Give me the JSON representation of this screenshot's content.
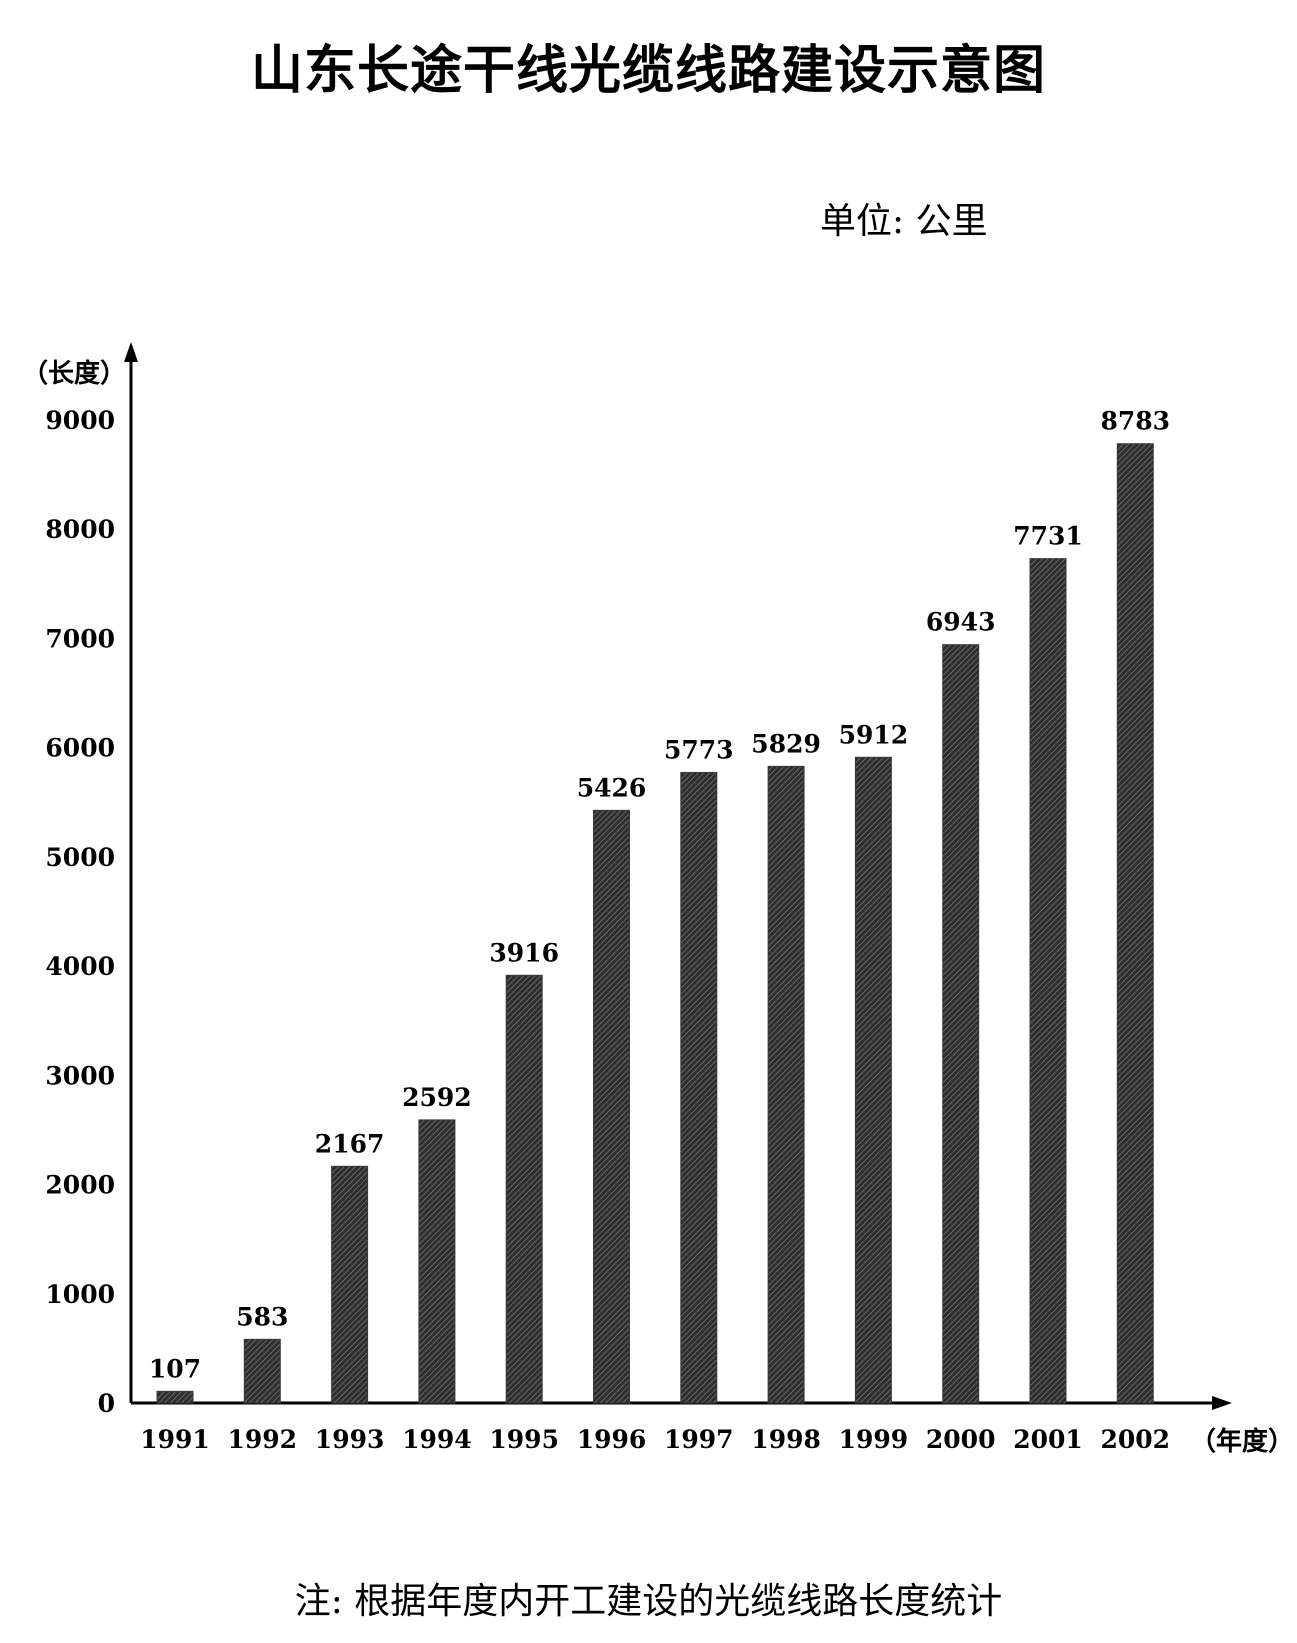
{
  "chart_data": {
    "type": "bar",
    "title": "山东长途干线光缆线路建设示意图",
    "unit": "单位: 公里",
    "ylabel": "（长度）",
    "xlabel": "（年度）",
    "note": "注: 根据年度内开工建设的光缆线路长度统计",
    "ylim": [
      0,
      9000
    ],
    "yticks": [
      0,
      1000,
      2000,
      3000,
      4000,
      5000,
      6000,
      7000,
      8000,
      9000
    ],
    "categories": [
      "1991",
      "1992",
      "1993",
      "1994",
      "1995",
      "1996",
      "1997",
      "1998",
      "1999",
      "2000",
      "2001",
      "2002"
    ],
    "values": [
      107,
      583,
      2167,
      2592,
      3916,
      5426,
      5773,
      5829,
      5912,
      6943,
      7731,
      8783
    ],
    "data_labels": [
      "107",
      "583",
      "2167",
      "2592",
      "3916",
      "5426",
      "5773",
      "5829",
      "5912",
      "6943",
      "7731",
      "8783"
    ],
    "bar_color": "#3a3a3a",
    "grid": false
  }
}
